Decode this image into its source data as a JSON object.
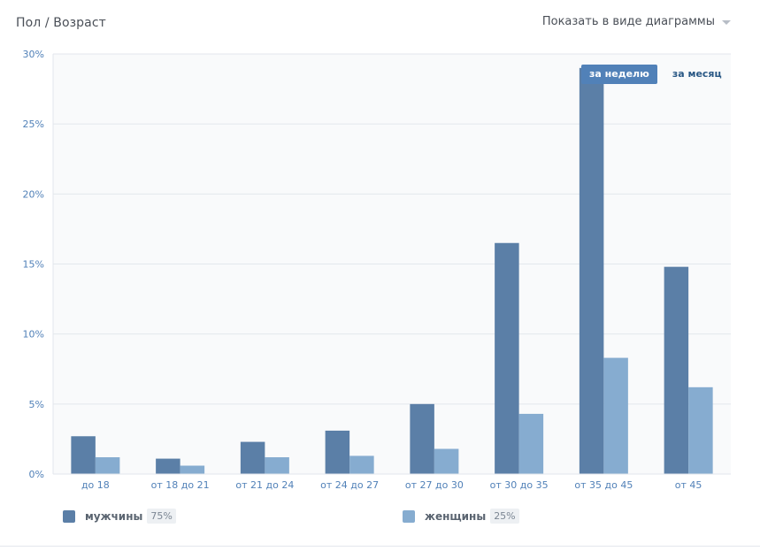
{
  "header": {
    "title": "Пол / Возраст",
    "view_toggle_label": "Показать в виде диаграммы"
  },
  "period": {
    "week_label": "за неделю",
    "month_label": "за месяц",
    "active": "week"
  },
  "legend": {
    "men_label": "мужчины",
    "men_pct": "75%",
    "women_label": "женщины",
    "women_pct": "25%"
  },
  "colors": {
    "men": "#5b7fa7",
    "women": "#86acd0",
    "grid": "#e3e7ec",
    "tick": "#5181b8",
    "plot_bg": "#f9fafb"
  },
  "chart_data": {
    "type": "bar",
    "categories": [
      "до 18",
      "от 18 до 21",
      "от 21 до 24",
      "от 24 до 27",
      "от 27 до 30",
      "от 30 до 35",
      "от 35 до 45",
      "от 45"
    ],
    "series": [
      {
        "name": "мужчины",
        "values": [
          2.7,
          1.1,
          2.3,
          3.1,
          5.0,
          16.5,
          29.0,
          14.8
        ]
      },
      {
        "name": "женщины",
        "values": [
          1.2,
          0.6,
          1.2,
          1.3,
          1.8,
          4.3,
          8.3,
          6.2
        ]
      }
    ],
    "yticks": [
      "0%",
      "5%",
      "10%",
      "15%",
      "20%",
      "25%",
      "30%"
    ],
    "ylim": [
      0,
      30
    ],
    "grid": true,
    "legend_position": "bottom"
  }
}
